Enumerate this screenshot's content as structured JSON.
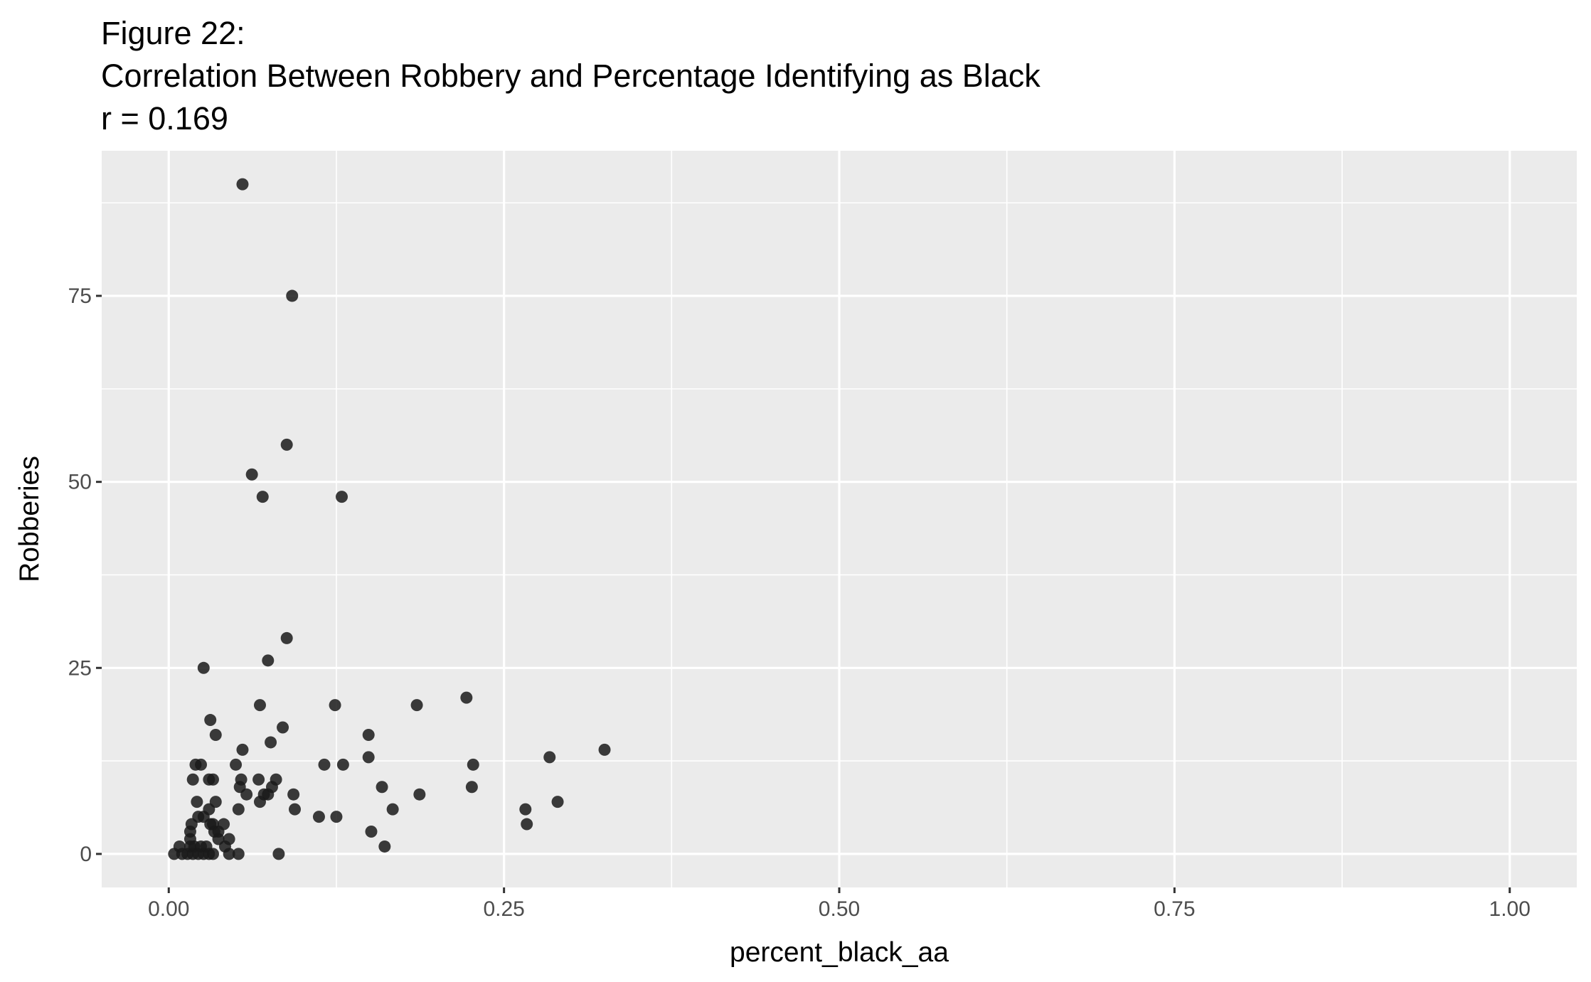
{
  "chart_data": {
    "type": "scatter",
    "title": [
      "Figure 22:",
      "Correlation Between Robbery and Percentage Identifying as Black",
      "r = 0.169"
    ],
    "xlabel": "percent_black_aa",
    "ylabel": "Robberies",
    "xlim": [
      -0.05,
      1.05
    ],
    "ylim": [
      -4.5,
      94.5
    ],
    "x_ticks": [
      0,
      0.25,
      0.5,
      0.75,
      1
    ],
    "x_tick_labels": [
      "0.00",
      "0.25",
      "0.50",
      "0.75",
      "1.00"
    ],
    "y_ticks": [
      0,
      25,
      50,
      75
    ],
    "y_tick_labels": [
      "0",
      "25",
      "50",
      "75"
    ],
    "grid": true,
    "colors": {
      "panel": "#ebebeb",
      "grid": "#ffffff",
      "point": "#1a1a1a"
    },
    "points": [
      {
        "x": 0.055,
        "y": 90
      },
      {
        "x": 0.092,
        "y": 75
      },
      {
        "x": 0.088,
        "y": 55
      },
      {
        "x": 0.062,
        "y": 51
      },
      {
        "x": 0.07,
        "y": 48
      },
      {
        "x": 0.129,
        "y": 48
      },
      {
        "x": 0.088,
        "y": 29
      },
      {
        "x": 0.074,
        "y": 26
      },
      {
        "x": 0.026,
        "y": 25
      },
      {
        "x": 0.222,
        "y": 21
      },
      {
        "x": 0.068,
        "y": 20
      },
      {
        "x": 0.124,
        "y": 20
      },
      {
        "x": 0.185,
        "y": 20
      },
      {
        "x": 0.031,
        "y": 18
      },
      {
        "x": 0.085,
        "y": 17
      },
      {
        "x": 0.035,
        "y": 16
      },
      {
        "x": 0.149,
        "y": 16
      },
      {
        "x": 0.076,
        "y": 15
      },
      {
        "x": 0.055,
        "y": 14
      },
      {
        "x": 0.325,
        "y": 14
      },
      {
        "x": 0.149,
        "y": 13
      },
      {
        "x": 0.284,
        "y": 13
      },
      {
        "x": 0.02,
        "y": 12
      },
      {
        "x": 0.024,
        "y": 12
      },
      {
        "x": 0.05,
        "y": 12
      },
      {
        "x": 0.116,
        "y": 12
      },
      {
        "x": 0.13,
        "y": 12
      },
      {
        "x": 0.227,
        "y": 12
      },
      {
        "x": 0.018,
        "y": 10
      },
      {
        "x": 0.03,
        "y": 10
      },
      {
        "x": 0.033,
        "y": 10
      },
      {
        "x": 0.054,
        "y": 10
      },
      {
        "x": 0.067,
        "y": 10
      },
      {
        "x": 0.08,
        "y": 10
      },
      {
        "x": 0.053,
        "y": 9
      },
      {
        "x": 0.077,
        "y": 9
      },
      {
        "x": 0.159,
        "y": 9
      },
      {
        "x": 0.226,
        "y": 9
      },
      {
        "x": 0.058,
        "y": 8
      },
      {
        "x": 0.071,
        "y": 8
      },
      {
        "x": 0.074,
        "y": 8
      },
      {
        "x": 0.093,
        "y": 8
      },
      {
        "x": 0.187,
        "y": 8
      },
      {
        "x": 0.021,
        "y": 7
      },
      {
        "x": 0.035,
        "y": 7
      },
      {
        "x": 0.068,
        "y": 7
      },
      {
        "x": 0.29,
        "y": 7
      },
      {
        "x": 0.03,
        "y": 6
      },
      {
        "x": 0.052,
        "y": 6
      },
      {
        "x": 0.094,
        "y": 6
      },
      {
        "x": 0.167,
        "y": 6
      },
      {
        "x": 0.266,
        "y": 6
      },
      {
        "x": 0.022,
        "y": 5
      },
      {
        "x": 0.026,
        "y": 5
      },
      {
        "x": 0.112,
        "y": 5
      },
      {
        "x": 0.125,
        "y": 5
      },
      {
        "x": 0.017,
        "y": 4
      },
      {
        "x": 0.031,
        "y": 4
      },
      {
        "x": 0.033,
        "y": 4
      },
      {
        "x": 0.041,
        "y": 4
      },
      {
        "x": 0.267,
        "y": 4
      },
      {
        "x": 0.016,
        "y": 3
      },
      {
        "x": 0.034,
        "y": 3
      },
      {
        "x": 0.037,
        "y": 3
      },
      {
        "x": 0.151,
        "y": 3
      },
      {
        "x": 0.016,
        "y": 2
      },
      {
        "x": 0.037,
        "y": 2
      },
      {
        "x": 0.045,
        "y": 2
      },
      {
        "x": 0.008,
        "y": 1
      },
      {
        "x": 0.016,
        "y": 1
      },
      {
        "x": 0.019,
        "y": 1
      },
      {
        "x": 0.024,
        "y": 1
      },
      {
        "x": 0.028,
        "y": 1
      },
      {
        "x": 0.042,
        "y": 1
      },
      {
        "x": 0.161,
        "y": 1
      },
      {
        "x": 0.004,
        "y": 0
      },
      {
        "x": 0.01,
        "y": 0
      },
      {
        "x": 0.014,
        "y": 0
      },
      {
        "x": 0.018,
        "y": 0
      },
      {
        "x": 0.022,
        "y": 0
      },
      {
        "x": 0.026,
        "y": 0
      },
      {
        "x": 0.03,
        "y": 0
      },
      {
        "x": 0.033,
        "y": 0
      },
      {
        "x": 0.045,
        "y": 0
      },
      {
        "x": 0.052,
        "y": 0
      },
      {
        "x": 0.082,
        "y": 0
      }
    ]
  }
}
